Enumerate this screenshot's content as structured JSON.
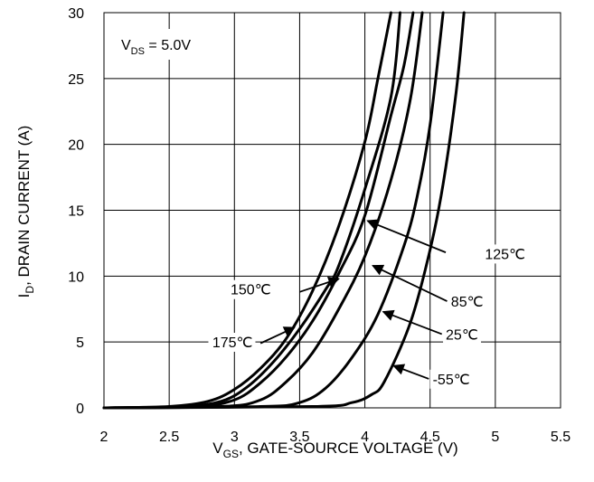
{
  "chart_data": {
    "type": "line",
    "title": "",
    "xlabel": {
      "main": "V",
      "sub": "GS",
      "rest": ", GATE-SOURCE VOLTAGE (V)"
    },
    "ylabel": {
      "main": "I",
      "sub": "D",
      "rest": ", DRAIN CURRENT (A)"
    },
    "xlim": [
      2,
      5.5
    ],
    "ylim": [
      0,
      30
    ],
    "xticks": [
      "2",
      "2.5",
      "3",
      "3.5",
      "4",
      "4.5",
      "5",
      "5.5"
    ],
    "yticks": [
      "0",
      "5",
      "10",
      "15",
      "20",
      "25",
      "30"
    ],
    "grid": true,
    "condition": {
      "main": "V",
      "sub": "DS",
      "rest": " = 5.0V"
    },
    "series": [
      {
        "name": "175℃",
        "points": [
          [
            2.0,
            0.0
          ],
          [
            2.5,
            0.1
          ],
          [
            2.8,
            0.5
          ],
          [
            3.0,
            1.4
          ],
          [
            3.2,
            3.0
          ],
          [
            3.4,
            5.3
          ],
          [
            3.6,
            8.9
          ],
          [
            3.8,
            13.8
          ],
          [
            4.0,
            20.2
          ],
          [
            4.1,
            25.0
          ],
          [
            4.2,
            30.0
          ]
        ]
      },
      {
        "name": "150℃",
        "points": [
          [
            2.0,
            0.0
          ],
          [
            2.6,
            0.1
          ],
          [
            2.9,
            0.5
          ],
          [
            3.1,
            1.6
          ],
          [
            3.3,
            3.5
          ],
          [
            3.5,
            6.0
          ],
          [
            3.7,
            9.0
          ],
          [
            3.8,
            10.8
          ],
          [
            4.0,
            16.6
          ],
          [
            4.2,
            23.6
          ],
          [
            4.27,
            30.0
          ]
        ]
      },
      {
        "name": "125℃",
        "points": [
          [
            2.0,
            0.0
          ],
          [
            2.7,
            0.1
          ],
          [
            3.0,
            0.6
          ],
          [
            3.2,
            1.9
          ],
          [
            3.4,
            3.9
          ],
          [
            3.6,
            6.6
          ],
          [
            3.8,
            10.2
          ],
          [
            4.0,
            14.6
          ],
          [
            4.2,
            22.2
          ],
          [
            4.3,
            26.0
          ],
          [
            4.37,
            30.0
          ]
        ]
      },
      {
        "name": "85℃",
        "points": [
          [
            2.0,
            0.0
          ],
          [
            2.9,
            0.1
          ],
          [
            3.2,
            0.6
          ],
          [
            3.4,
            2.0
          ],
          [
            3.6,
            4.2
          ],
          [
            3.8,
            7.5
          ],
          [
            4.0,
            11.5
          ],
          [
            4.2,
            17.3
          ],
          [
            4.35,
            23.5
          ],
          [
            4.44,
            30.0
          ]
        ]
      },
      {
        "name": "25℃",
        "points": [
          [
            2.0,
            0.0
          ],
          [
            3.2,
            0.1
          ],
          [
            3.5,
            0.4
          ],
          [
            3.7,
            1.5
          ],
          [
            3.9,
            3.8
          ],
          [
            4.1,
            7.1
          ],
          [
            4.3,
            12.3
          ],
          [
            4.4,
            16.0
          ],
          [
            4.5,
            21.5
          ],
          [
            4.6,
            30.0
          ]
        ]
      },
      {
        "name": "-55℃",
        "points": [
          [
            2.0,
            0.0
          ],
          [
            3.6,
            0.1
          ],
          [
            3.9,
            0.4
          ],
          [
            4.05,
            1.0
          ],
          [
            4.15,
            2.0
          ],
          [
            4.35,
            6.5
          ],
          [
            4.5,
            12.0
          ],
          [
            4.6,
            17.0
          ],
          [
            4.7,
            24.0
          ],
          [
            4.76,
            30.0
          ]
        ]
      }
    ],
    "annotations": [
      {
        "label": "125℃",
        "text_at": [
          4.92,
          11.3
        ],
        "anchor": "start",
        "arrow_from": [
          4.62,
          11.8
        ],
        "arrow_to": [
          4.02,
          14.2
        ]
      },
      {
        "label": "150℃",
        "text_at": [
          3.28,
          8.6
        ],
        "anchor": "end",
        "arrow_from": [
          3.5,
          8.8
        ],
        "arrow_to": [
          3.8,
          9.8
        ]
      },
      {
        "label": "85℃",
        "text_at": [
          4.66,
          7.7
        ],
        "anchor": "start",
        "arrow_from": [
          4.63,
          8.1
        ],
        "arrow_to": [
          4.06,
          10.8
        ]
      },
      {
        "label": "175℃",
        "text_at": [
          3.14,
          4.6
        ],
        "anchor": "end",
        "arrow_from": [
          3.2,
          4.9
        ],
        "arrow_to": [
          3.46,
          6.1
        ]
      },
      {
        "label": "25℃",
        "text_at": [
          4.62,
          5.2
        ],
        "anchor": "start",
        "arrow_from": [
          4.59,
          5.6
        ],
        "arrow_to": [
          4.14,
          7.3
        ]
      },
      {
        "label": "-55℃",
        "text_at": [
          4.52,
          1.8
        ],
        "anchor": "start",
        "arrow_from": [
          4.49,
          2.2
        ],
        "arrow_to": [
          4.22,
          3.2
        ]
      }
    ]
  }
}
